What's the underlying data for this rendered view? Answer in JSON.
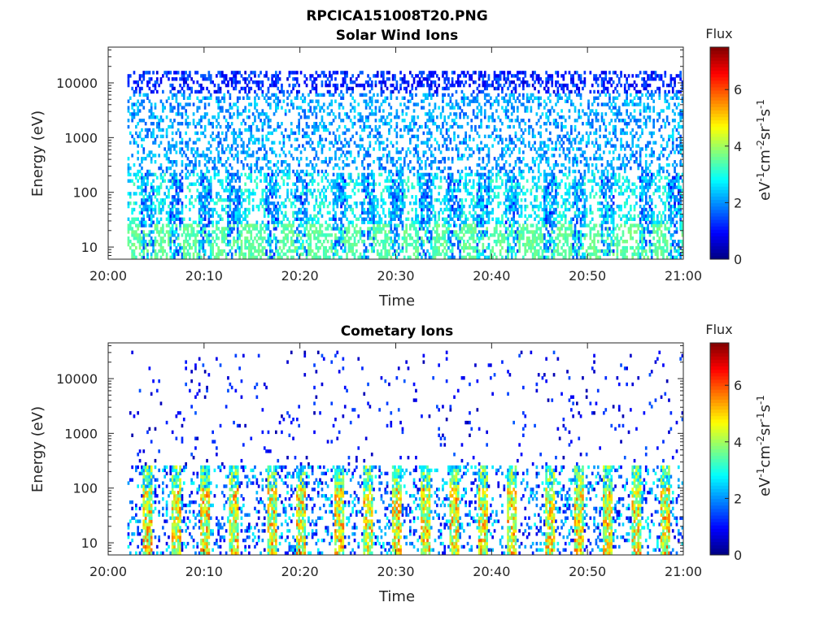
{
  "figure_title": "RPCICA151008T20.PNG",
  "colorbar": {
    "title": "Flux",
    "label_base": "eV",
    "label_exps": [
      "-1",
      "-2",
      "-1",
      "-1"
    ],
    "label_units": [
      "cm",
      "sr",
      "s"
    ],
    "min": 0,
    "max": 7.5,
    "ticks": [
      "0",
      "2",
      "4",
      "6"
    ],
    "colormap": "jet"
  },
  "chart_data": [
    {
      "type": "heatmap",
      "title": "Solar Wind Ions",
      "xlabel": "Time",
      "ylabel": "Energy (eV)",
      "x_ticks": [
        "20:00",
        "20:10",
        "20:20",
        "20:30",
        "20:40",
        "20:50",
        "21:00"
      ],
      "xlim": [
        "20:00",
        "21:00"
      ],
      "y_scale": "log",
      "y_ticks": [
        "10",
        "100",
        "1000",
        "10000"
      ],
      "ylim": [
        6,
        45000
      ],
      "data_time_range": [
        "20:02",
        "21:00"
      ],
      "bursts": [
        "20:04",
        "20:07",
        "20:10",
        "20:13",
        "20:17",
        "20:20",
        "20:24",
        "20:27",
        "20:30",
        "20:33",
        "20:36",
        "20:39",
        "20:42",
        "20:46",
        "20:49",
        "20:52",
        "20:56",
        "20:59"
      ],
      "description_levels": {
        "high_energy_flux": 1.5,
        "low_energy_flux": 3.8
      }
    },
    {
      "type": "heatmap",
      "title": "Cometary Ions",
      "xlabel": "Time",
      "ylabel": "Energy (eV)",
      "x_ticks": [
        "20:00",
        "20:10",
        "20:20",
        "20:30",
        "20:40",
        "20:50",
        "21:00"
      ],
      "xlim": [
        "20:00",
        "21:00"
      ],
      "y_scale": "log",
      "y_ticks": [
        "10",
        "100",
        "1000",
        "10000"
      ],
      "ylim": [
        6,
        45000
      ],
      "data_time_range": [
        "20:02",
        "21:00"
      ],
      "bursts": [
        "20:04",
        "20:07",
        "20:10",
        "20:13",
        "20:17",
        "20:20",
        "20:24",
        "20:27",
        "20:30",
        "20:33",
        "20:36",
        "20:39",
        "20:42",
        "20:46",
        "20:49",
        "20:52",
        "20:55",
        "20:58"
      ],
      "description_levels": {
        "peak_flux": 5.8,
        "background_flux": 3.0
      }
    }
  ]
}
